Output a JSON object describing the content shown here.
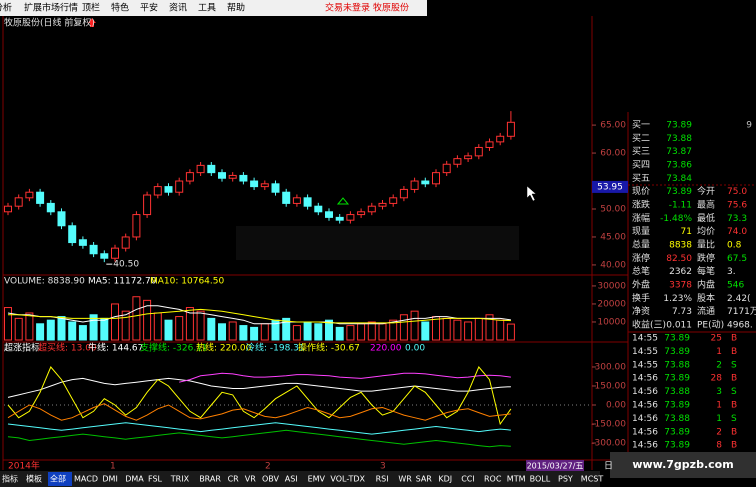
{
  "menu": {
    "items": [
      "分析",
      "扩展市场行情",
      "顶栏",
      "特色",
      "平安",
      "资讯",
      "工具",
      "帮助"
    ],
    "status": [
      "交易未登录",
      "牧原股份"
    ]
  },
  "chart_data": [
    {
      "type": "candlestick",
      "title": "牧原股份(日线 前复权)",
      "open": [
        49.5,
        50.5,
        52,
        53,
        51,
        49.5,
        47,
        44.5,
        43.5,
        42,
        41.2,
        43,
        45,
        49,
        52.5,
        54,
        53,
        55,
        56.5,
        57.8,
        56.5,
        55.5,
        56,
        55,
        54,
        54.5,
        53,
        51,
        52,
        50.5,
        49.5,
        48.5,
        48,
        49,
        49.5,
        50.5,
        51,
        52,
        53.5,
        55,
        54.5,
        56.5,
        58,
        59,
        59.5,
        61,
        62,
        63
      ],
      "high": [
        51.1,
        52.6,
        53.6,
        53.6,
        51.6,
        50.1,
        47.6,
        45.1,
        44.1,
        42.6,
        43.6,
        45.6,
        49.6,
        53.1,
        54.6,
        54.6,
        55.6,
        57.1,
        58.4,
        58.4,
        57.1,
        56.6,
        56.6,
        55.6,
        55.1,
        55.1,
        53.6,
        52.6,
        52.6,
        51.1,
        50.1,
        49.1,
        49.6,
        50.1,
        51.1,
        51.6,
        52.6,
        54.1,
        55.6,
        55.6,
        57.1,
        58.6,
        59.6,
        60.1,
        61.6,
        62.6,
        63.6,
        67.5
      ],
      "low": [
        48.9,
        49.9,
        51.4,
        50.4,
        48.9,
        46.4,
        43.4,
        42.9,
        41.4,
        40.5,
        40.6,
        42.4,
        44.4,
        48.4,
        51.9,
        52.4,
        52.4,
        54.4,
        55.9,
        55.9,
        54.9,
        54.9,
        54.4,
        53.4,
        53.4,
        52.4,
        50.4,
        50.4,
        49.9,
        48.9,
        47.9,
        47.4,
        47.4,
        48.4,
        48.9,
        49.9,
        50.4,
        51.4,
        52.9,
        53.9,
        53.9,
        55.9,
        57.4,
        58.4,
        58.9,
        60.4,
        61.4,
        62.4
      ],
      "close": [
        50.5,
        52,
        53,
        51,
        49.5,
        47,
        44,
        43.5,
        42,
        41.2,
        43,
        45,
        49,
        52.5,
        54,
        53,
        55,
        56.5,
        57.8,
        56.5,
        55.5,
        56,
        55,
        54,
        54.5,
        53,
        51,
        52,
        50.5,
        49.5,
        48.5,
        48,
        49,
        49.5,
        50.5,
        51,
        52,
        53.5,
        55,
        54.5,
        56.5,
        58,
        59,
        59.5,
        61,
        62,
        63,
        65.5
      ],
      "up_color": "#ff3232",
      "down_color": "#54fcfc",
      "ylim": [
        38.2,
        82
      ],
      "yticks": [
        {
          "value": 65,
          "label": "65.00"
        },
        {
          "value": 60,
          "label": "60.00"
        },
        {
          "value": 50,
          "label": "50.00"
        },
        {
          "value": 45,
          "label": "45.00"
        },
        {
          "value": 40,
          "label": "40.00"
        }
      ],
      "cursor_price": {
        "value": 53.95,
        "label": "53.95"
      },
      "low_label": "40.50"
    },
    {
      "type": "bar",
      "header": [
        "VOLUME: 8838.90",
        "MA5: 11172.70",
        "MA10: 10764.50"
      ],
      "values": [
        18000,
        12000,
        15000,
        9000,
        11000,
        13000,
        10000,
        8000,
        14000,
        12000,
        20000,
        16000,
        24000,
        22000,
        15000,
        11000,
        13000,
        18000,
        16000,
        12000,
        9000,
        10000,
        8000,
        7000,
        9000,
        11000,
        12000,
        8000,
        10000,
        9000,
        11000,
        7000,
        8000,
        9000,
        10000,
        9000,
        11000,
        14000,
        16000,
        10000,
        13000,
        12000,
        11000,
        10000,
        12000,
        14000,
        11000,
        8838.9
      ],
      "series": [
        {
          "color": "#ffffff",
          "values": [
            15000,
            14000,
            14000,
            13000,
            13000,
            12000,
            11000,
            10000,
            11000,
            11000,
            13000,
            14000,
            17000,
            19000,
            19000,
            18000,
            17000,
            15000,
            15000,
            14000,
            13000,
            12000,
            11000,
            9000,
            9000,
            9000,
            10000,
            10000,
            10000,
            10000,
            10000,
            9000,
            9000,
            9000,
            9000,
            9000,
            10000,
            11000,
            12000,
            12000,
            13000,
            13000,
            12000,
            12000,
            12000,
            12000,
            12000,
            11172.7
          ]
        },
        {
          "color": "#ffff00",
          "values": [
            14000,
            14000,
            13500,
            13000,
            13000,
            12500,
            12000,
            12000,
            12000,
            12000,
            12000,
            12500,
            13500,
            14500,
            15000,
            15500,
            16000,
            16500,
            17000,
            16500,
            16000,
            15000,
            14000,
            13000,
            12000,
            11000,
            10500,
            10000,
            10000,
            10000,
            9500,
            9500,
            9500,
            9500,
            9500,
            9500,
            9500,
            10000,
            10500,
            11000,
            11500,
            12000,
            12000,
            12000,
            12000,
            11500,
            11000,
            10764.5
          ]
        }
      ],
      "ylim": [
        0,
        34400
      ],
      "yticks": [
        10000,
        20000,
        30000
      ]
    },
    {
      "type": "line",
      "header": [
        "超涨指标",
        "超买线: 13.00",
        "牛线: 144.67",
        "支撑线: -326.11",
        "热线: 220.00",
        "冷线: -198.31",
        "操作线: -30.67",
        "220.00",
        "0.00"
      ],
      "header_colors": [
        "#ffffff",
        "#ff3232",
        "#ffffff",
        "#00e000",
        "#ffff00",
        "#54fcfc",
        "#ffff00",
        "#ff00ff",
        "#54fcfc"
      ],
      "series": [
        {
          "color": "#ffffff",
          "values": [
            60,
            80,
            100,
            120,
            150,
            180,
            200,
            210,
            190,
            170,
            160,
            170,
            180,
            190,
            200,
            210,
            200,
            190,
            170,
            150,
            140,
            130,
            130,
            140,
            150,
            160,
            170,
            170,
            160,
            150,
            140,
            130,
            120,
            110,
            110,
            120,
            130,
            140,
            150,
            140,
            130,
            120,
            110,
            110,
            120,
            130,
            140,
            144.67
          ]
        },
        {
          "color": "#ff40ff",
          "values": [
            null,
            null,
            null,
            null,
            null,
            null,
            null,
            null,
            null,
            null,
            null,
            null,
            null,
            null,
            null,
            null,
            180,
            200,
            230,
            240,
            250,
            245,
            230,
            220,
            220,
            225,
            230,
            240,
            240,
            235,
            230,
            220,
            215,
            210,
            220,
            230,
            240,
            250,
            250,
            245,
            235,
            225,
            215,
            220,
            230,
            235,
            230,
            220
          ]
        },
        {
          "color": "#ffff00",
          "values": [
            0,
            -100,
            -50,
            100,
            300,
            200,
            50,
            -100,
            -50,
            50,
            0,
            -80,
            -20,
            100,
            200,
            150,
            50,
            -50,
            -100,
            0,
            100,
            80,
            -50,
            -100,
            -30,
            50,
            100,
            150,
            50,
            -50,
            -100,
            -20,
            60,
            100,
            0,
            -80,
            -50,
            50,
            150,
            100,
            0,
            -100,
            -50,
            100,
            300,
            200,
            -150,
            -30.67
          ]
        },
        {
          "color": "#00c000",
          "values": [
            -250,
            -260,
            -280,
            -270,
            -260,
            -250,
            -240,
            -230,
            -240,
            -250,
            -260,
            -270,
            -260,
            -250,
            -240,
            -230,
            -220,
            -230,
            -240,
            -250,
            -260,
            -250,
            -240,
            -230,
            -220,
            -210,
            -200,
            -210,
            -220,
            -230,
            -240,
            -250,
            -260,
            -270,
            -280,
            -290,
            -300,
            -310,
            -300,
            -290,
            -280,
            -290,
            -300,
            -310,
            -320,
            -330,
            -320,
            -326.11
          ]
        },
        {
          "color": "#54fcfc",
          "values": [
            -150,
            -160,
            -170,
            -180,
            -190,
            -200,
            -190,
            -180,
            -170,
            -160,
            -150,
            -140,
            -150,
            -160,
            -170,
            -180,
            -190,
            -200,
            -210,
            -200,
            -190,
            -180,
            -170,
            -160,
            -150,
            -140,
            -150,
            -160,
            -170,
            -180,
            -190,
            -200,
            -210,
            -220,
            -230,
            -220,
            -210,
            -200,
            -190,
            -180,
            -170,
            -180,
            -190,
            -200,
            -210,
            -200,
            -190,
            -198.31
          ]
        },
        {
          "color": "#ff8000",
          "values": [
            -100,
            -50,
            0,
            -30,
            -80,
            -120,
            -100,
            -60,
            -20,
            10,
            -40,
            -90,
            -120,
            -80,
            -30,
            0,
            -50,
            -100,
            -110,
            -90,
            -70,
            -40,
            -30,
            -60,
            -90,
            -100,
            -80,
            -50,
            -20,
            -40,
            -70,
            -100,
            -90,
            -60,
            -30,
            -20,
            -50,
            -80,
            -100,
            -120,
            -90,
            -60,
            -40,
            -30,
            -60,
            -90,
            -80,
            -70
          ]
        }
      ],
      "ylim": [
        -434,
        497
      ],
      "yticks": [
        {
          "value": 300,
          "label": "300.00"
        },
        {
          "value": 150,
          "label": "150.00"
        },
        {
          "value": 0,
          "label": "0.00"
        },
        {
          "value": -150,
          "label": "-150.00"
        },
        {
          "value": -300,
          "label": "-300.00"
        }
      ]
    }
  ],
  "time_axis": [
    "2014年",
    "1",
    "2",
    "3"
  ],
  "cursor_date": "2015/03/27/五",
  "tabs": [
    "指标",
    "模板",
    "全部",
    "MACD",
    "DMI",
    "DMA",
    "FSL",
    "TRIX",
    "BRAR",
    "CR",
    "VR",
    "OBV",
    "ASI",
    "EMV",
    "VOL-TDX",
    "RSI",
    "WR",
    "SAR",
    "KDJ",
    "CCI",
    "ROC",
    "MTM",
    "BOLL",
    "PSY",
    "MCST"
  ],
  "period": "日",
  "watermark": "www.7gpzb.com",
  "quote": {
    "bids": [
      [
        "买一",
        "73.89",
        "9"
      ],
      [
        "买二",
        "73.88"
      ],
      [
        "买三",
        "73.87"
      ],
      [
        "买四",
        "73.86"
      ],
      [
        "买五",
        "73.84"
      ]
    ],
    "rows": [
      [
        "现价",
        "73.89",
        "今开",
        "75.0"
      ],
      [
        "涨跌",
        "-1.11",
        "最高",
        "75.6"
      ],
      [
        "涨幅",
        "-1.48%",
        "最低",
        "73.3"
      ],
      [
        "现量",
        "71",
        "均价",
        "74.0"
      ],
      [
        "总量",
        "8838",
        "量比",
        "0.8"
      ],
      [
        "涨停",
        "82.50",
        "跌停",
        "67.5"
      ],
      [
        "总笔",
        "2362",
        "每笔",
        "3."
      ],
      [
        "外盘",
        "3378",
        "内盘",
        "546"
      ],
      [
        "换手",
        "1.23%",
        "股本",
        "2.42("
      ],
      [
        "净资",
        "7.73",
        "流通",
        "7171万"
      ],
      [
        "收益(三)",
        "0.011",
        "PE(动)",
        "4968."
      ]
    ],
    "ticks": [
      [
        "14:55",
        "73.89",
        "25",
        "B"
      ],
      [
        "14:55",
        "73.89",
        "1",
        "B"
      ],
      [
        "14:55",
        "73.88",
        "2",
        "S"
      ],
      [
        "14:56",
        "73.89",
        "28",
        "B"
      ],
      [
        "14:56",
        "73.88",
        "3",
        "S"
      ],
      [
        "14:56",
        "73.89",
        "1",
        "B"
      ],
      [
        "14:56",
        "73.88",
        "1",
        "S"
      ],
      [
        "14:56",
        "73.89",
        "2",
        "B"
      ],
      [
        "14:56",
        "73.89",
        "8",
        "B"
      ]
    ]
  }
}
